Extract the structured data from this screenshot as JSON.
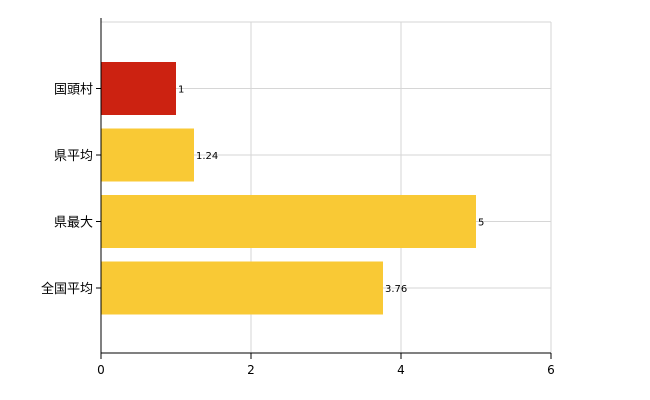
{
  "chart_data": {
    "type": "bar",
    "orientation": "horizontal",
    "categories": [
      "国頭村",
      "県平均",
      "県最大",
      "全国平均"
    ],
    "values": [
      1,
      1.24,
      5,
      3.76
    ],
    "value_labels": [
      "1",
      "1.24",
      "5",
      "3.76"
    ],
    "bar_colors": [
      "#cc2211",
      "#f9c935",
      "#f9c935",
      "#f9c935"
    ],
    "xlim": [
      0,
      6
    ],
    "xticks": [
      0,
      2,
      4,
      6
    ],
    "grid": true,
    "title": "",
    "xlabel": "",
    "ylabel": ""
  }
}
